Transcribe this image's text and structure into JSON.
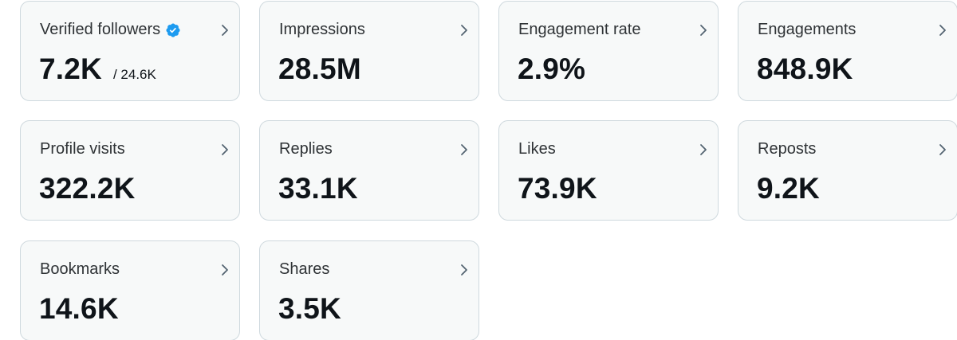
{
  "colors": {
    "card_bg": "#f7f9f9",
    "card_border": "#cfd9de",
    "text": "#0f1419",
    "verified_badge": "#1d9bf0"
  },
  "metrics": [
    {
      "label": "Verified followers",
      "value": "7.2K",
      "sub": "/ 24.6K",
      "icon": "verified-badge-icon"
    },
    {
      "label": "Impressions",
      "value": "28.5M"
    },
    {
      "label": "Engagement rate",
      "value": "2.9%"
    },
    {
      "label": "Engagements",
      "value": "848.9K"
    },
    {
      "label": "Profile visits",
      "value": "322.2K"
    },
    {
      "label": "Replies",
      "value": "33.1K"
    },
    {
      "label": "Likes",
      "value": "73.9K"
    },
    {
      "label": "Reposts",
      "value": "9.2K"
    },
    {
      "label": "Bookmarks",
      "value": "14.6K"
    },
    {
      "label": "Shares",
      "value": "3.5K"
    }
  ]
}
